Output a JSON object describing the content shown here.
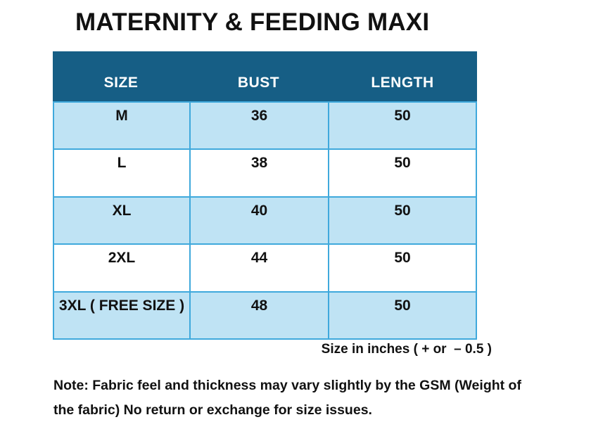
{
  "title": "MATERNITY & FEEDING MAXI",
  "table": {
    "columns": [
      "SIZE",
      "BUST",
      "LENGTH"
    ],
    "rows": [
      {
        "size": "M",
        "bust": "36",
        "length": "50"
      },
      {
        "size": "L",
        "bust": "38",
        "length": "50"
      },
      {
        "size": "XL",
        "bust": "40",
        "length": "50"
      },
      {
        "size": "2XL",
        "bust": "44",
        "length": "50"
      },
      {
        "size": "3XL ( FREE SIZE )",
        "bust": "48",
        "length": "50"
      }
    ],
    "caption": "Size in inches ( + or  – 0.5 )"
  },
  "note": {
    "line1": "Note: Fabric feel and thickness may vary slightly by the GSM (Weight of",
    "line2": "the fabric) No return or exchange for size issues."
  },
  "colors": {
    "header_bg": "#165e85",
    "header_text": "#ffffff",
    "row_alt_bg": "#bfe3f4",
    "row_bg": "#ffffff",
    "border": "#3fa9dc",
    "text": "#111111"
  }
}
